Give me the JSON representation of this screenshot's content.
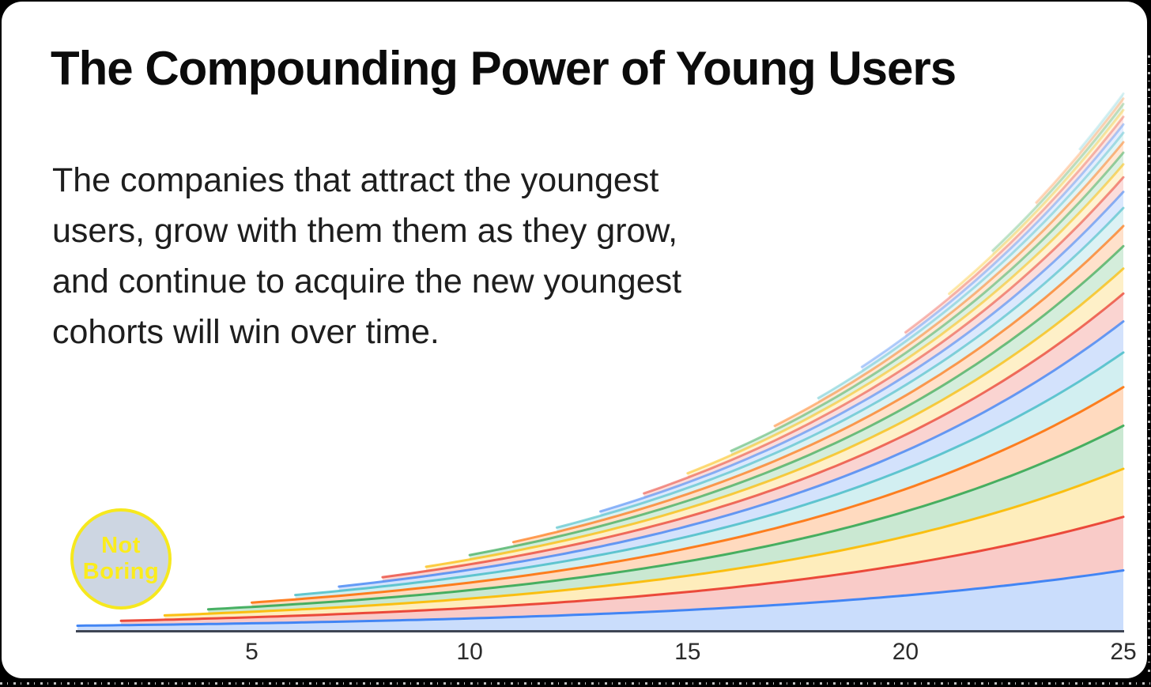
{
  "window": {
    "background": "#000000"
  },
  "card": {
    "background": "#ffffff"
  },
  "title": "The Compounding Power of Young Users",
  "body_lines": [
    "The companies that attract the youngest",
    "users, grow with them them as they grow,",
    "and continue to acquire the new youngest",
    "cohorts will win over time."
  ],
  "badge": {
    "line1": "Not",
    "line2": "Boring",
    "text_color": "#fbec1c",
    "circle_fill": "#cdd6e2",
    "circle_border": "#f6e81e"
  },
  "chart_data": {
    "type": "area",
    "stacked": true,
    "title": "",
    "xlabel": "",
    "ylabel": "",
    "grid": false,
    "legend": "none",
    "x_range": [
      1,
      25
    ],
    "x_ticks": [
      "5",
      "10",
      "15",
      "20",
      "25"
    ],
    "cohort_count": 25,
    "new_cohort_every_years": 1,
    "cohort_initial_value": 1,
    "annual_growth_rate": 1.115,
    "relative_total_by_tick_year": {
      "5": 6.3,
      "10": 17.1,
      "15": 35.3,
      "20": 66.3,
      "25": 119.1
    },
    "palette": [
      "#4285f4",
      "#ea4335",
      "#fbbc04",
      "#34a853",
      "#ff6d01",
      "#46bdc6"
    ],
    "axis_color": "#3e4554",
    "tick_label_color": "#2b2b2b",
    "line_alpha_range": [
      1.0,
      0.18
    ],
    "fill_alpha_range": [
      0.28,
      0.1
    ]
  }
}
